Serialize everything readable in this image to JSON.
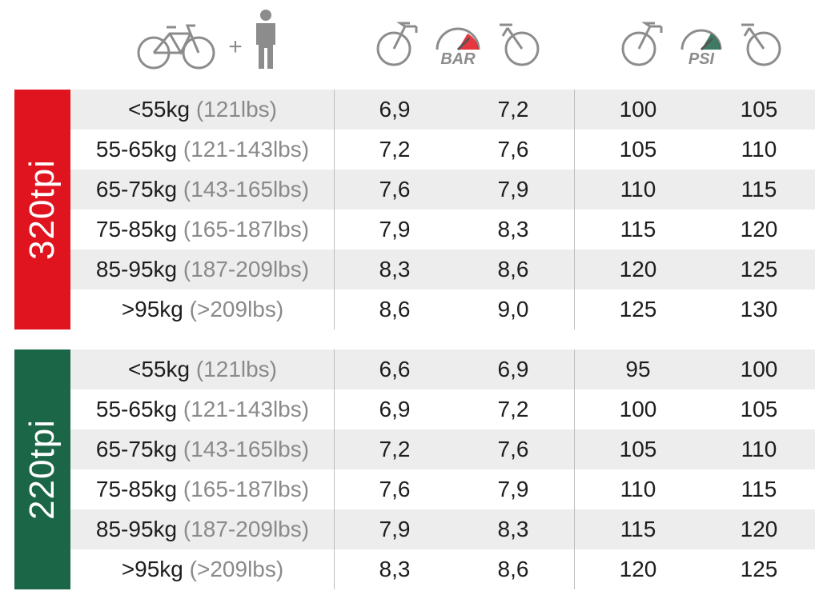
{
  "header": {
    "icons": [
      "bicycle-icon",
      "plus-icon",
      "person-icon",
      "front-wheel-bike-icon",
      "bar-gauge-icon",
      "rear-wheel-bike-icon",
      "front-wheel-bike-icon",
      "psi-gauge-icon",
      "rear-wheel-bike-icon"
    ],
    "plus": "+",
    "bar_unit": "BAR",
    "psi_unit": "PSI"
  },
  "groups": [
    {
      "label": "320tpi",
      "color": "#e0141e",
      "rows": [
        {
          "kg": "<55kg",
          "lbs": "(121lbs)",
          "bar_front": "6,9",
          "bar_rear": "7,2",
          "psi_front": "100",
          "psi_rear": "105"
        },
        {
          "kg": "55-65kg",
          "lbs": "(121-143lbs)",
          "bar_front": "7,2",
          "bar_rear": "7,6",
          "psi_front": "105",
          "psi_rear": "110"
        },
        {
          "kg": "65-75kg",
          "lbs": "(143-165lbs)",
          "bar_front": "7,6",
          "bar_rear": "7,9",
          "psi_front": "110",
          "psi_rear": "115"
        },
        {
          "kg": "75-85kg",
          "lbs": "(165-187lbs)",
          "bar_front": "7,9",
          "bar_rear": "8,3",
          "psi_front": "115",
          "psi_rear": "120"
        },
        {
          "kg": "85-95kg",
          "lbs": "(187-209lbs)",
          "bar_front": "8,3",
          "bar_rear": "8,6",
          "psi_front": "120",
          "psi_rear": "125"
        },
        {
          "kg": ">95kg",
          "lbs": "(>209lbs)",
          "bar_front": "8,6",
          "bar_rear": "9,0",
          "psi_front": "125",
          "psi_rear": "130"
        }
      ]
    },
    {
      "label": "220tpi",
      "color": "#1c6648",
      "rows": [
        {
          "kg": "<55kg",
          "lbs": "(121lbs)",
          "bar_front": "6,6",
          "bar_rear": "6,9",
          "psi_front": "95",
          "psi_rear": "100"
        },
        {
          "kg": "55-65kg",
          "lbs": "(121-143lbs)",
          "bar_front": "6,9",
          "bar_rear": "7,2",
          "psi_front": "100",
          "psi_rear": "105"
        },
        {
          "kg": "65-75kg",
          "lbs": "(143-165lbs)",
          "bar_front": "7,2",
          "bar_rear": "7,6",
          "psi_front": "105",
          "psi_rear": "110"
        },
        {
          "kg": "75-85kg",
          "lbs": "(165-187lbs)",
          "bar_front": "7,6",
          "bar_rear": "7,9",
          "psi_front": "110",
          "psi_rear": "115"
        },
        {
          "kg": "85-95kg",
          "lbs": "(187-209lbs)",
          "bar_front": "7,9",
          "bar_rear": "8,3",
          "psi_front": "115",
          "psi_rear": "120"
        },
        {
          "kg": ">95kg",
          "lbs": "(>209lbs)",
          "bar_front": "8,3",
          "bar_rear": "8,6",
          "psi_front": "120",
          "psi_rear": "125"
        }
      ]
    }
  ]
}
